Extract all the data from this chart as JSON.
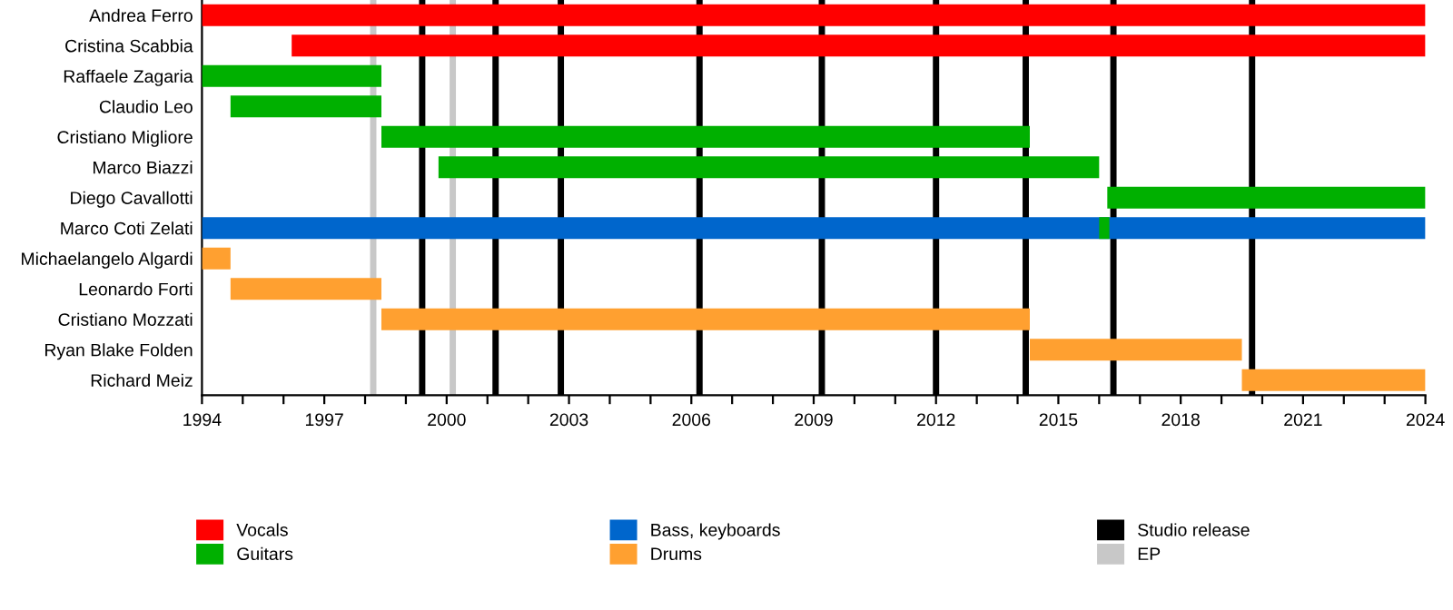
{
  "chart_data": {
    "type": "bar",
    "orientation": "horizontal",
    "categories": [
      "Andrea Ferro",
      "Cristina Scabbia",
      "Raffaele Zagaria",
      "Claudio Leo",
      "Cristiano Migliore",
      "Marco Biazzi",
      "Diego Cavallotti",
      "Marco Coti Zelati",
      "Michaelangelo Algardi",
      "Leonardo Forti",
      "Cristiano Mozzati",
      "Ryan Blake Folden",
      "Richard Meiz"
    ],
    "series": [
      {
        "name": "Vocals",
        "color": "#ff0000",
        "base": [
          1994,
          1996.2,
          null,
          null,
          null,
          null,
          null,
          null,
          null,
          null,
          null,
          null,
          null
        ],
        "values": [
          30,
          27.8,
          null,
          null,
          null,
          null,
          null,
          null,
          null,
          null,
          null,
          null,
          null
        ]
      },
      {
        "name": "Guitars",
        "color": "#00b000",
        "base": [
          null,
          null,
          1994,
          1994.7,
          1998.4,
          1999.8,
          2016.2,
          2016.0,
          null,
          null,
          null,
          null,
          null
        ],
        "values": [
          null,
          null,
          4.4,
          3.7,
          15.9,
          16.2,
          7.8,
          0.25,
          null,
          null,
          null,
          null,
          null
        ]
      },
      {
        "name": "Bass, keyboards",
        "color": "#0066cc",
        "base": [
          null,
          null,
          null,
          null,
          null,
          null,
          null,
          1994,
          null,
          null,
          null,
          null,
          null
        ],
        "values": [
          null,
          null,
          null,
          null,
          null,
          null,
          null,
          30,
          null,
          null,
          null,
          null,
          null
        ]
      },
      {
        "name": "Drums",
        "color": "#ffa030",
        "base": [
          null,
          null,
          null,
          null,
          null,
          null,
          null,
          null,
          1994,
          1994.7,
          1998.4,
          2014.3,
          2019.5
        ],
        "values": [
          null,
          null,
          null,
          null,
          null,
          null,
          null,
          null,
          0.7,
          3.7,
          15.9,
          5.2,
          4.5
        ]
      }
    ],
    "xlim": [
      1994,
      2024
    ],
    "xticks": [
      1994,
      {
        "value": 1995,
        "label": null
      },
      {
        "value": 1996,
        "label": null
      },
      1997,
      {
        "value": 1998,
        "label": null
      },
      {
        "value": 1999,
        "label": null
      },
      2000,
      {
        "value": 2001,
        "label": null
      },
      {
        "value": 2002,
        "label": null
      },
      2003,
      {
        "value": 2004,
        "label": null
      },
      {
        "value": 2005,
        "label": null
      },
      2006,
      {
        "value": 2007,
        "label": null
      },
      {
        "value": 2008,
        "label": null
      },
      2009,
      {
        "value": 2010,
        "label": null
      },
      {
        "value": 2011,
        "label": null
      },
      2012,
      {
        "value": 2013,
        "label": null
      },
      {
        "value": 2014,
        "label": null
      },
      2015,
      {
        "value": 2016,
        "label": null
      },
      {
        "value": 2017,
        "label": null
      },
      2018,
      {
        "value": 2019,
        "label": null
      },
      {
        "value": 2020,
        "label": null
      },
      2021,
      {
        "value": 2022,
        "label": null
      },
      {
        "value": 2023,
        "label": null
      },
      2024
    ],
    "ref_lines": [
      {
        "axis": "x",
        "value": 1999.4,
        "label": "Studio release",
        "color": "#000000"
      },
      {
        "axis": "x",
        "value": 1998.2,
        "label": "EP",
        "color": "#c8c8c8"
      },
      {
        "axis": "x",
        "value": 2000.15,
        "color": "#c8c8c8"
      },
      {
        "axis": "x",
        "value": 2001.2,
        "color": "#000000"
      },
      {
        "axis": "x",
        "value": 2002.8,
        "color": "#000000"
      },
      {
        "axis": "x",
        "value": 2006.2,
        "color": "#000000"
      },
      {
        "axis": "x",
        "value": 2009.2,
        "color": "#000000"
      },
      {
        "axis": "x",
        "value": 2012.0,
        "color": "#000000"
      },
      {
        "axis": "x",
        "value": 2014.2,
        "color": "#000000"
      },
      {
        "axis": "x",
        "value": 2016.35,
        "color": "#000000"
      },
      {
        "axis": "x",
        "value": 2019.75,
        "color": "#000000"
      }
    ],
    "grid": false,
    "legend": "bottom"
  }
}
